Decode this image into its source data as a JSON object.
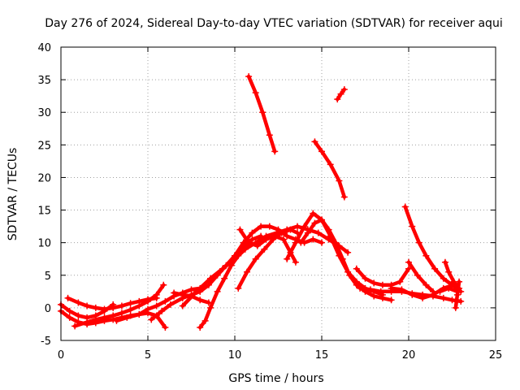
{
  "chart_data": {
    "type": "scatter",
    "title": "Day 276 of 2024, Sidereal Day-to-day VTEC variation (SDTVAR) for receiver aqui",
    "xlabel": "GPS time / hours",
    "ylabel": "SDTVAR / TECUs",
    "xlim": [
      0,
      25
    ],
    "ylim": [
      -5,
      40
    ],
    "xticks": [
      "0",
      "5",
      "10",
      "15",
      "20",
      "25"
    ],
    "yticks": [
      "-5",
      "0",
      "5",
      "10",
      "15",
      "20",
      "25",
      "30",
      "35",
      "40"
    ],
    "grid": true,
    "marker": "plus",
    "color": "#ff0000",
    "series": [
      {
        "name": "s1",
        "x": [
          0.0,
          0.5,
          1.0,
          1.5,
          2.0,
          2.5,
          3.0
        ],
        "y": [
          0.5,
          -0.5,
          -1.2,
          -1.5,
          -1.2,
          -0.5,
          0.5
        ]
      },
      {
        "name": "s2",
        "x": [
          0.0,
          0.5,
          1.0,
          1.5,
          2.0,
          2.5,
          3.0,
          3.5,
          4.0,
          4.5,
          5.0,
          5.5,
          6.0
        ],
        "y": [
          -0.5,
          -1.5,
          -2.2,
          -2.5,
          -2.3,
          -2.0,
          -1.8,
          -1.5,
          -1.2,
          -1.0,
          -0.8,
          -1.2,
          -3.0
        ]
      },
      {
        "name": "s3",
        "x": [
          0.4,
          1.0,
          1.5,
          2.0,
          2.5,
          3.0,
          3.5,
          4.0,
          4.5,
          5.0,
          5.5
        ],
        "y": [
          1.5,
          0.8,
          0.3,
          0.0,
          -0.2,
          0.0,
          0.3,
          0.7,
          1.0,
          1.3,
          1.5
        ]
      },
      {
        "name": "s4",
        "x": [
          0.8,
          1.5,
          2.0,
          2.5,
          3.0,
          3.5,
          4.0,
          4.5,
          5.0,
          5.5,
          5.9
        ],
        "y": [
          -2.8,
          -2.2,
          -1.8,
          -1.5,
          -1.2,
          -0.8,
          -0.3,
          0.3,
          1.0,
          2.0,
          3.5
        ]
      },
      {
        "name": "s5",
        "x": [
          3.2,
          3.8,
          4.5,
          5.0,
          5.5,
          6.0,
          6.5,
          7.0,
          7.5,
          8.0
        ],
        "y": [
          -2.0,
          -1.5,
          -1.0,
          -0.2,
          0.3,
          1.0,
          1.8,
          2.3,
          2.8,
          3.0
        ]
      },
      {
        "name": "s6",
        "x": [
          5.2,
          5.8,
          6.3,
          7.0,
          7.5,
          8.0,
          8.5,
          9.0,
          9.5,
          10.0
        ],
        "y": [
          -1.8,
          -0.5,
          0.5,
          1.5,
          2.0,
          2.5,
          3.5,
          5.0,
          6.5,
          8.0
        ]
      },
      {
        "name": "s7",
        "x": [
          6.5,
          7.0,
          7.5,
          8.0,
          8.5
        ],
        "y": [
          2.3,
          2.0,
          1.8,
          1.2,
          0.8
        ]
      },
      {
        "name": "s8",
        "x": [
          8.0,
          8.3,
          8.6,
          9.0,
          9.4,
          9.8,
          10.2,
          10.6,
          11.0,
          11.5
        ],
        "y": [
          -3.0,
          -2.0,
          0.0,
          2.5,
          4.5,
          6.5,
          8.0,
          9.5,
          10.5,
          11.0
        ]
      },
      {
        "name": "s9",
        "x": [
          7.0,
          7.8,
          8.6,
          9.3,
          10.0,
          10.6,
          11.2,
          11.8,
          12.4,
          13.0,
          13.6,
          14.2,
          14.8,
          15.4,
          16.0,
          16.5
        ],
        "y": [
          0.3,
          2.5,
          4.5,
          6.0,
          7.5,
          9.0,
          10.0,
          11.0,
          11.5,
          12.0,
          12.5,
          12.0,
          11.5,
          10.5,
          9.5,
          8.5
        ]
      },
      {
        "name": "s10",
        "x": [
          10.0,
          10.5,
          11.0,
          11.5,
          12.0,
          12.5,
          13.0,
          13.5,
          14.0,
          14.5,
          15.0
        ],
        "y": [
          8.0,
          10.0,
          11.5,
          12.5,
          12.5,
          12.0,
          11.0,
          10.5,
          10.0,
          10.5,
          10.0
        ]
      },
      {
        "name": "s11",
        "x": [
          10.2,
          10.7,
          11.2,
          11.7,
          12.2,
          12.7,
          13.2,
          13.6
        ],
        "y": [
          3.0,
          5.5,
          7.5,
          9.0,
          10.5,
          11.5,
          12.0,
          11.5
        ]
      },
      {
        "name": "s12",
        "x": [
          10.3,
          10.8,
          11.3,
          11.8,
          12.3,
          12.8,
          13.2,
          13.5
        ],
        "y": [
          12.0,
          10.0,
          9.5,
          10.5,
          11.0,
          10.5,
          8.5,
          7.0
        ]
      },
      {
        "name": "s13",
        "x": [
          13.0,
          13.5,
          14.0,
          14.5,
          15.0,
          15.5,
          16.0,
          16.5,
          17.0,
          17.5,
          18.0,
          18.5
        ],
        "y": [
          7.5,
          10.0,
          12.5,
          14.5,
          13.5,
          11.0,
          8.0,
          5.5,
          4.0,
          3.0,
          2.5,
          2.0
        ]
      },
      {
        "name": "s14",
        "x": [
          13.8,
          14.2,
          14.6,
          15.0,
          15.4,
          15.8,
          16.2,
          16.6,
          17.0,
          17.5,
          18.0,
          18.5,
          19.0
        ],
        "y": [
          10.0,
          11.5,
          13.0,
          13.5,
          12.0,
          10.0,
          7.5,
          5.0,
          3.5,
          2.5,
          1.8,
          1.5,
          1.2
        ]
      },
      {
        "name": "s15",
        "x": [
          10.8,
          11.2,
          11.6,
          12.0,
          12.3
        ],
        "y": [
          35.5,
          33.0,
          30.0,
          26.5,
          24.0
        ]
      },
      {
        "name": "s16",
        "x": [
          14.6,
          15.0,
          15.5,
          16.0,
          16.3
        ],
        "y": [
          25.5,
          24.0,
          22.0,
          19.5,
          17.0
        ]
      },
      {
        "name": "s17",
        "x": [
          15.9,
          16.1,
          16.3
        ],
        "y": [
          32.0,
          32.8,
          33.5
        ]
      },
      {
        "name": "s18",
        "x": [
          17.0,
          17.5,
          18.0,
          18.5,
          19.0,
          19.5,
          20.0
        ],
        "y": [
          6.0,
          4.5,
          3.8,
          3.5,
          3.5,
          4.0,
          6.0
        ]
      },
      {
        "name": "s19",
        "x": [
          17.2,
          17.8,
          18.4,
          19.0,
          19.6,
          20.2,
          20.8,
          21.4,
          22.0,
          22.5,
          23.0
        ],
        "y": [
          3.0,
          2.8,
          2.5,
          2.5,
          2.5,
          2.2,
          2.0,
          1.8,
          1.5,
          1.2,
          1.0
        ]
      },
      {
        "name": "s20",
        "x": [
          19.8,
          20.2,
          20.6,
          21.0,
          21.5,
          22.0,
          22.5,
          23.0
        ],
        "y": [
          15.5,
          12.5,
          10.0,
          8.0,
          6.0,
          4.5,
          3.5,
          2.5
        ]
      },
      {
        "name": "s21",
        "x": [
          20.0,
          20.5,
          21.0,
          21.4
        ],
        "y": [
          7.0,
          5.0,
          3.5,
          2.5
        ]
      },
      {
        "name": "s22",
        "x": [
          19.0,
          19.6,
          20.2,
          20.8,
          21.4,
          22.0,
          22.6
        ],
        "y": [
          3.0,
          2.8,
          2.0,
          1.5,
          2.0,
          3.0,
          3.5
        ]
      },
      {
        "name": "s23",
        "x": [
          22.1,
          22.3,
          22.6,
          22.9
        ],
        "y": [
          7.0,
          5.5,
          4.0,
          3.0
        ]
      },
      {
        "name": "s24",
        "x": [
          22.7,
          22.8,
          22.9
        ],
        "y": [
          0.0,
          2.0,
          4.0
        ]
      },
      {
        "name": "s25",
        "x": [
          21.8,
          22.3,
          22.8
        ],
        "y": [
          2.5,
          3.0,
          2.5
        ]
      }
    ]
  }
}
